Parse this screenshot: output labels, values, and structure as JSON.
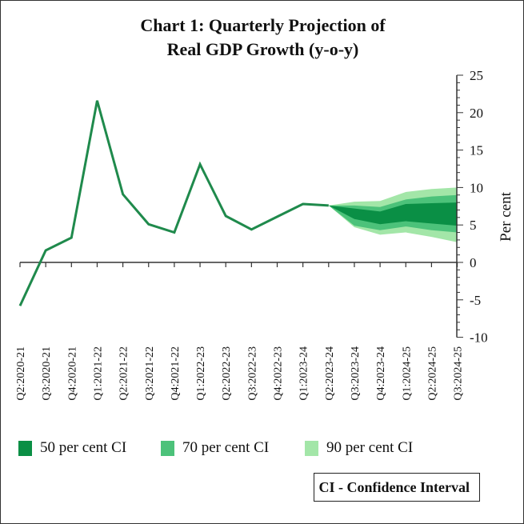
{
  "chart_data": {
    "type": "line",
    "title_line1": "Chart 1: Quarterly Projection of",
    "title_line2": "Real GDP Growth (y-o-y)",
    "ylabel": "Per cent",
    "ylim": [
      -10,
      25
    ],
    "yticks": [
      "25",
      "20",
      "15",
      "10",
      "5",
      "0",
      "-5",
      "-10"
    ],
    "categories": [
      "Q2:2020-21",
      "Q3:2020-21",
      "Q4:2020-21",
      "Q1:2021-22",
      "Q2:2021-22",
      "Q3:2021-22",
      "Q4:2021-22",
      "Q1:2022-23",
      "Q2:2022-23",
      "Q3:2022-23",
      "Q4:2022-23",
      "Q1:2023-24",
      "Q2:2023-24",
      "Q3:2023-24",
      "Q4:2023-24",
      "Q1:2024-25",
      "Q2:2024-25",
      "Q3:2024-25"
    ],
    "actual": [
      -5.8,
      1.6,
      3.3,
      21.6,
      9.1,
      5.1,
      4.0,
      13.1,
      6.2,
      4.4,
      6.1,
      7.8,
      7.6
    ],
    "fan_start_index": 12,
    "fan": {
      "ci90_upper": [
        7.6,
        8.1,
        8.2,
        9.4,
        9.8,
        10.0
      ],
      "ci70_upper": [
        7.6,
        7.6,
        7.4,
        8.4,
        8.8,
        9.0
      ],
      "ci50_upper": [
        7.6,
        7.2,
        6.8,
        7.8,
        7.9,
        8.0
      ],
      "ci50_lower": [
        7.6,
        5.8,
        5.1,
        5.5,
        5.2,
        4.9
      ],
      "ci70_lower": [
        7.6,
        4.9,
        4.3,
        4.8,
        4.3,
        4.0
      ],
      "ci90_lower": [
        7.6,
        4.7,
        3.7,
        4.0,
        3.4,
        2.7
      ]
    },
    "legend": [
      {
        "label": "50 per cent CI",
        "color": "#0a8f45"
      },
      {
        "label": "70 per cent CI",
        "color": "#4cc27a"
      },
      {
        "label": "90 per cent CI",
        "color": "#a3e6a8"
      }
    ],
    "line_color": "#1f8a4c",
    "legend_placement": "bottom",
    "note": "CI - Confidence Interval"
  }
}
